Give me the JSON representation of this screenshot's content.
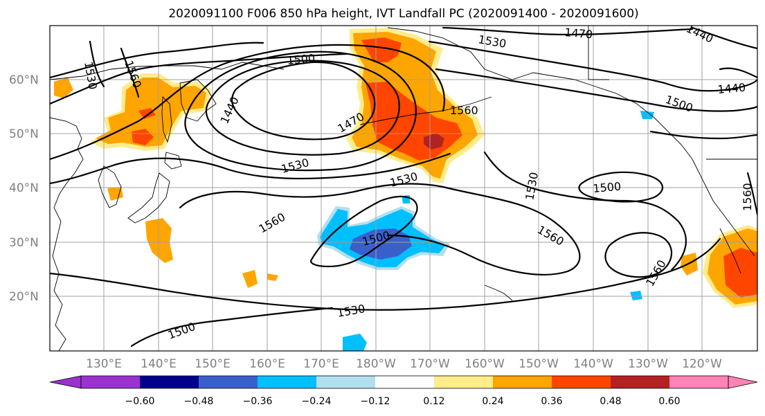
{
  "title": "2020091100 F006 850 hPa height, IVT Landfall PC (2020091400 - 2020091600)",
  "colors": {
    "band_neg_060_below": "#9a32cd",
    "band_neg_060_neg_048": "#00008b",
    "band_neg_048_neg_036": "#3a5fcd",
    "band_neg_036_neg_024": "#00bfff",
    "band_neg_024_neg_012": "#b2dfee",
    "band_neg_012_012": "#ffffff",
    "band_012_024": "#ffec8b",
    "band_024_036": "#ffa500",
    "band_036_048": "#ff4500",
    "band_048_060": "#b22222",
    "band_060_above": "#ff83b5",
    "contour": "#000000",
    "grid": "#a0a0a0",
    "axis_label": "#808080"
  },
  "map": {
    "lat_labels": [
      "60°N",
      "50°N",
      "40°N",
      "30°N",
      "20°N"
    ],
    "lon_labels": [
      "130°E",
      "140°E",
      "150°E",
      "160°E",
      "170°E",
      "180°W",
      "170°W",
      "160°W",
      "150°W",
      "140°W",
      "130°W",
      "120°W"
    ],
    "contour_labels": [
      {
        "text": "1530"
      },
      {
        "text": "1560"
      },
      {
        "text": "1500"
      },
      {
        "text": "1470"
      },
      {
        "text": "1440"
      },
      {
        "text": "1440"
      },
      {
        "text": "1440"
      },
      {
        "text": "1500"
      },
      {
        "text": "1560"
      },
      {
        "text": "1530"
      },
      {
        "text": "1470"
      },
      {
        "text": "1530"
      },
      {
        "text": "1530"
      },
      {
        "text": "1560"
      },
      {
        "text": "1500"
      },
      {
        "text": "1530"
      },
      {
        "text": "1500"
      },
      {
        "text": "1560"
      },
      {
        "text": "1560"
      },
      {
        "text": "1560"
      },
      {
        "text": "1530"
      },
      {
        "text": "1500"
      }
    ]
  },
  "colorbar": {
    "ticks": [
      "−0.60",
      "−0.48",
      "−0.36",
      "−0.24",
      "−0.12",
      "0.12",
      "0.24",
      "0.36",
      "0.48",
      "0.60"
    ]
  }
}
